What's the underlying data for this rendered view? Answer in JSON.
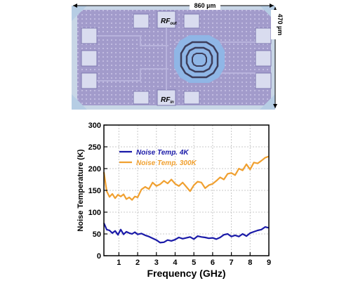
{
  "chip_photo": {
    "width_label": "860 µm",
    "height_label": "470 µm",
    "rf_out_main": "RF",
    "rf_out_sub": "out",
    "rf_in_main": "RF",
    "rf_in_sub": "in",
    "colors": {
      "substrate": "#9a93c4",
      "pad": "#d9dcef",
      "inductor": "#8fb6e6",
      "border": "#c8d6e6"
    }
  },
  "chart_data": {
    "type": "line",
    "xlabel": "Frequency (GHz)",
    "ylabel": "Noise Temperature (K)",
    "xlim": [
      0.2,
      9.0
    ],
    "ylim": [
      0,
      300
    ],
    "xticks": [
      1,
      2,
      3,
      4,
      5,
      6,
      7,
      8,
      9
    ],
    "yticks": [
      0,
      50,
      100,
      150,
      200,
      250,
      300
    ],
    "grid": true,
    "legend_position": "top-left",
    "series": [
      {
        "name": "Noise Temp. 4K",
        "color": "#1a1aa8",
        "x": [
          0.2,
          0.35,
          0.5,
          0.65,
          0.8,
          0.95,
          1.1,
          1.25,
          1.4,
          1.55,
          1.7,
          1.85,
          2.0,
          2.2,
          2.4,
          2.6,
          2.8,
          3.0,
          3.2,
          3.4,
          3.6,
          3.8,
          4.0,
          4.2,
          4.4,
          4.6,
          4.8,
          5.0,
          5.2,
          5.4,
          5.6,
          5.8,
          6.0,
          6.2,
          6.4,
          6.6,
          6.8,
          7.0,
          7.2,
          7.4,
          7.6,
          7.8,
          8.0,
          8.2,
          8.4,
          8.6,
          8.8,
          9.0
        ],
        "y": [
          75,
          60,
          58,
          52,
          57,
          48,
          60,
          49,
          55,
          52,
          50,
          54,
          49,
          51,
          47,
          44,
          40,
          36,
          30,
          31,
          36,
          34,
          37,
          42,
          39,
          41,
          43,
          38,
          45,
          43,
          42,
          40,
          41,
          38,
          42,
          48,
          50,
          44,
          47,
          44,
          50,
          45,
          52,
          55,
          58,
          60,
          66,
          64
        ]
      },
      {
        "name": "Noise Temp. 300K",
        "color": "#f0a030",
        "x": [
          0.2,
          0.35,
          0.5,
          0.65,
          0.8,
          0.95,
          1.1,
          1.25,
          1.4,
          1.55,
          1.7,
          1.85,
          2.0,
          2.2,
          2.4,
          2.6,
          2.8,
          3.0,
          3.2,
          3.4,
          3.6,
          3.8,
          4.0,
          4.2,
          4.4,
          4.6,
          4.8,
          5.0,
          5.2,
          5.4,
          5.6,
          5.8,
          6.0,
          6.2,
          6.4,
          6.6,
          6.8,
          7.0,
          7.2,
          7.4,
          7.6,
          7.8,
          8.0,
          8.2,
          8.4,
          8.6,
          8.8,
          9.0
        ],
        "y": [
          192,
          148,
          135,
          142,
          132,
          140,
          136,
          141,
          130,
          134,
          128,
          136,
          134,
          152,
          158,
          153,
          168,
          160,
          164,
          172,
          166,
          175,
          165,
          160,
          168,
          158,
          148,
          162,
          170,
          168,
          155,
          162,
          165,
          172,
          180,
          175,
          188,
          190,
          185,
          200,
          196,
          210,
          198,
          214,
          212,
          218,
          225,
          228
        ]
      }
    ]
  }
}
